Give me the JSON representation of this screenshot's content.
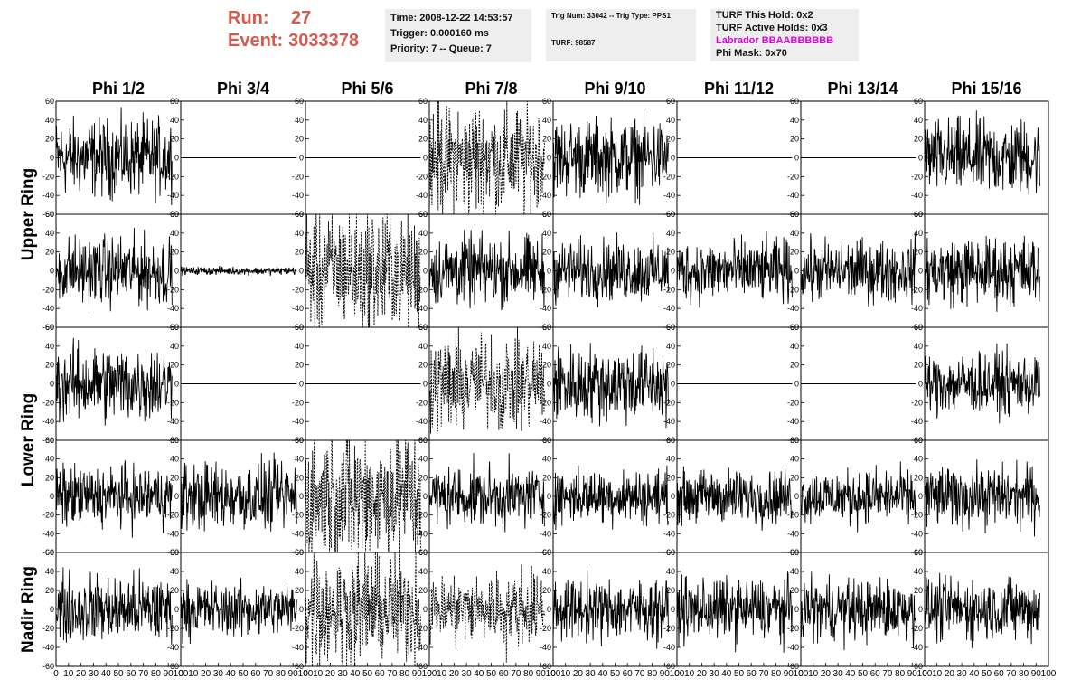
{
  "header": {
    "run_label": "Run:",
    "run_value": "27",
    "event_label": "Event:",
    "event_value": "3033378",
    "time_line": "Time: 2008-12-22 14:53:57",
    "trigger_line": "Trigger: 0.000160 ms",
    "priority_line": "Priority: 7 -- Queue: 7",
    "trig_line": "Trig Num: 33042 -- Trig Type: PPS1",
    "turf_line": "TURF: 98587",
    "turf_hold_line": "TURF This Hold: 0x2",
    "turf_active_line": "TURF Active Holds: 0x3",
    "labrador_line": "Labrador BBAABBBBBB",
    "phi_mask_line": "Phi Mask: 0x70"
  },
  "colors": {
    "run": "#d6584e",
    "labrador": "#e000e0",
    "box": "#eeeeee"
  },
  "chart_data": {
    "type": "line",
    "columns": [
      "Phi 1/2",
      "Phi 3/4",
      "Phi 5/6",
      "Phi 7/8",
      "Phi 9/10",
      "Phi 11/12",
      "Phi 13/14",
      "Phi 15/16"
    ],
    "ring_labels": [
      {
        "text": "Upper Ring",
        "rows": [
          0,
          1
        ]
      },
      {
        "text": "Lower Ring",
        "rows": [
          2,
          3
        ]
      },
      {
        "text": "Nadir Ring",
        "rows": [
          4
        ]
      }
    ],
    "ylim": [
      -60,
      60
    ],
    "xlim": [
      0,
      100
    ],
    "yticks": [
      -60,
      -40,
      -20,
      0,
      20,
      40,
      60
    ],
    "ytick_labels": [
      "-60",
      "-40",
      "-20",
      "0",
      "20",
      "40",
      "60"
    ],
    "xticks": [
      0,
      10,
      20,
      30,
      40,
      50,
      60,
      70,
      80,
      90,
      100
    ],
    "xtick_labels": [
      "0",
      "10",
      "20",
      "30",
      "40",
      "50",
      "60",
      "70",
      "80",
      "90",
      "100"
    ],
    "trace_x_range": [
      0,
      93
    ],
    "panel_styles": [
      [
        "solid",
        "flat",
        "flat",
        "dotted",
        "solid",
        "flat",
        "flat",
        "solid"
      ],
      [
        "solid",
        "quiet",
        "dotted",
        "solid",
        "solid",
        "solid",
        "solid",
        "solid"
      ],
      [
        "solid",
        "flat",
        "flat",
        "dotted",
        "solid",
        "flat",
        "flat",
        "solid"
      ],
      [
        "solid",
        "solid",
        "dotted",
        "solid",
        "solid",
        "solid",
        "solid",
        "solid"
      ],
      [
        "solid",
        "solid",
        "dotted",
        "dotted",
        "solid",
        "solid",
        "solid",
        "solid"
      ]
    ],
    "panel_amplitudes": [
      [
        20,
        0,
        0,
        28,
        20,
        0,
        0,
        20
      ],
      [
        18,
        2,
        32,
        18,
        16,
        16,
        16,
        18
      ],
      [
        20,
        0,
        0,
        24,
        20,
        0,
        0,
        16
      ],
      [
        16,
        18,
        36,
        16,
        14,
        14,
        14,
        16
      ],
      [
        18,
        14,
        28,
        18,
        16,
        16,
        16,
        16
      ]
    ]
  }
}
